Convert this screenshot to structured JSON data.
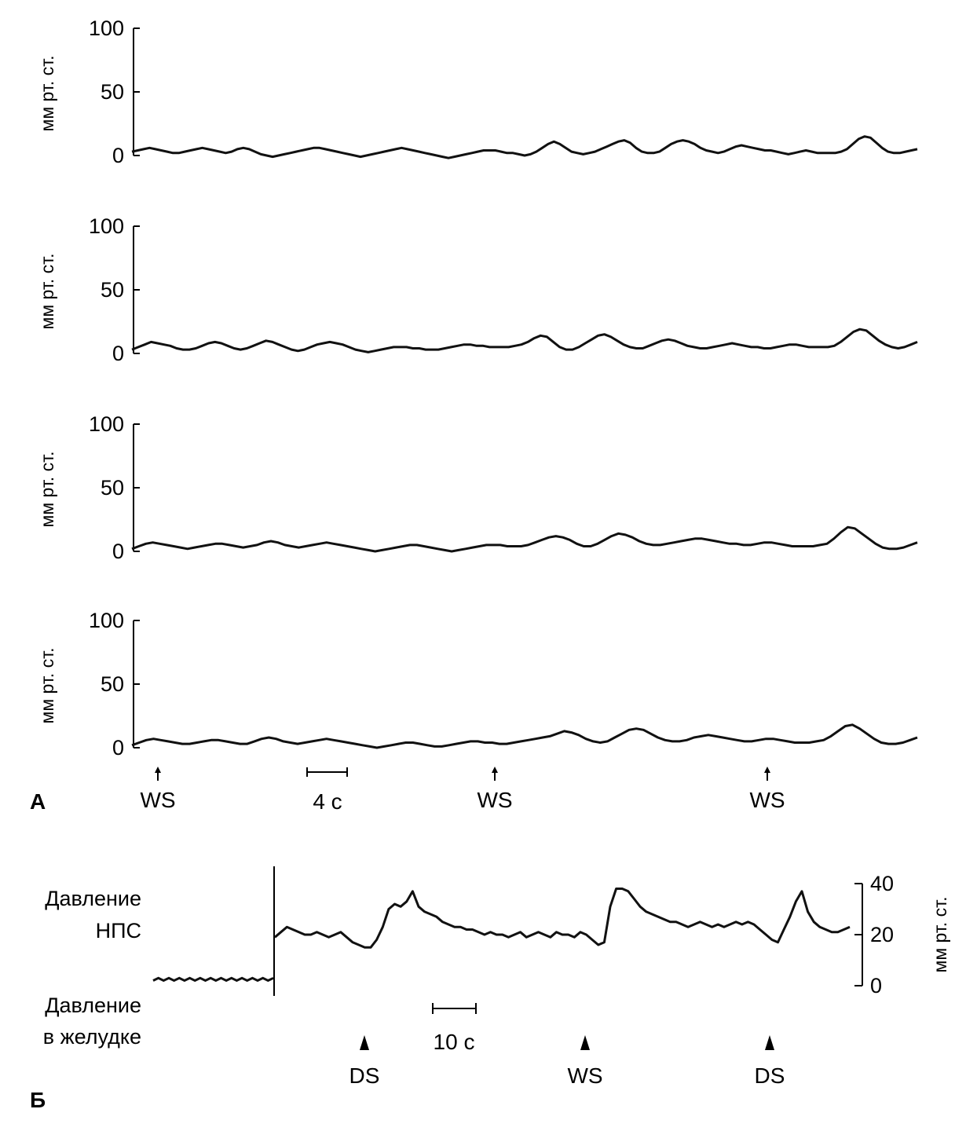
{
  "colors": {
    "trace": "#111111",
    "axis": "#000000",
    "background": "#ffffff"
  },
  "chart_data": [
    {
      "panel": "A",
      "type": "line",
      "ylabel": "мм рт. ст.",
      "ylim": [
        0,
        100
      ],
      "yticks": [
        "100",
        "50",
        "0"
      ],
      "scale_bar": "4 с",
      "events": [
        "WS",
        "WS",
        "WS"
      ],
      "series": [
        {
          "values": [
            3,
            4,
            5,
            6,
            5,
            4,
            3,
            2,
            2,
            3,
            4,
            5,
            6,
            5,
            4,
            3,
            2,
            3,
            5,
            6,
            5,
            3,
            1,
            0,
            -1,
            0,
            1,
            2,
            3,
            4,
            5,
            6,
            6,
            5,
            4,
            3,
            2,
            1,
            0,
            -1,
            0,
            1,
            2,
            3,
            4,
            5,
            6,
            5,
            4,
            3,
            2,
            1,
            0,
            -1,
            -2,
            -1,
            0,
            1,
            2,
            3,
            4,
            4,
            4,
            3,
            2,
            2,
            1,
            0,
            1,
            3,
            6,
            9,
            11,
            9,
            6,
            3,
            2,
            1,
            2,
            3,
            5,
            7,
            9,
            11,
            12,
            10,
            6,
            3,
            2,
            2,
            3,
            6,
            9,
            11,
            12,
            11,
            9,
            6,
            4,
            3,
            2,
            3,
            5,
            7,
            8,
            7,
            6,
            5,
            4,
            4,
            3,
            2,
            1,
            2,
            3,
            4,
            3,
            2,
            2,
            2,
            2,
            3,
            5,
            9,
            13,
            15,
            14,
            10,
            6,
            3,
            2,
            2,
            3,
            4,
            5
          ]
        },
        {
          "values": [
            3,
            5,
            7,
            9,
            8,
            7,
            6,
            4,
            3,
            3,
            4,
            6,
            8,
            9,
            8,
            6,
            4,
            3,
            4,
            6,
            8,
            10,
            9,
            7,
            5,
            3,
            2,
            3,
            5,
            7,
            8,
            9,
            8,
            7,
            5,
            3,
            2,
            1,
            2,
            3,
            4,
            5,
            5,
            5,
            4,
            4,
            3,
            3,
            3,
            4,
            5,
            6,
            7,
            7,
            6,
            6,
            5,
            5,
            5,
            5,
            6,
            7,
            9,
            12,
            14,
            13,
            9,
            5,
            3,
            3,
            5,
            8,
            11,
            14,
            15,
            13,
            10,
            7,
            5,
            4,
            4,
            6,
            8,
            10,
            11,
            10,
            8,
            6,
            5,
            4,
            4,
            5,
            6,
            7,
            8,
            7,
            6,
            5,
            5,
            4,
            4,
            5,
            6,
            7,
            7,
            6,
            5,
            5,
            5,
            5,
            6,
            9,
            13,
            17,
            19,
            18,
            14,
            10,
            7,
            5,
            4,
            5,
            7,
            9
          ]
        },
        {
          "values": [
            2,
            4,
            6,
            7,
            6,
            5,
            4,
            3,
            2,
            3,
            4,
            5,
            6,
            6,
            5,
            4,
            3,
            4,
            5,
            7,
            8,
            7,
            5,
            4,
            3,
            4,
            5,
            6,
            7,
            6,
            5,
            4,
            3,
            2,
            1,
            0,
            1,
            2,
            3,
            4,
            5,
            5,
            4,
            3,
            2,
            1,
            0,
            1,
            2,
            3,
            4,
            5,
            5,
            5,
            4,
            4,
            4,
            5,
            7,
            9,
            11,
            12,
            11,
            9,
            6,
            4,
            4,
            6,
            9,
            12,
            14,
            13,
            11,
            8,
            6,
            5,
            5,
            6,
            7,
            8,
            9,
            10,
            10,
            9,
            8,
            7,
            6,
            6,
            5,
            5,
            6,
            7,
            7,
            6,
            5,
            4,
            4,
            4,
            4,
            5,
            6,
            10,
            15,
            19,
            18,
            14,
            10,
            6,
            3,
            2,
            2,
            3,
            5,
            7
          ]
        },
        {
          "values": [
            2,
            4,
            6,
            7,
            6,
            5,
            4,
            3,
            3,
            4,
            5,
            6,
            6,
            5,
            4,
            3,
            3,
            5,
            7,
            8,
            7,
            5,
            4,
            3,
            4,
            5,
            6,
            7,
            6,
            5,
            4,
            3,
            2,
            1,
            0,
            1,
            2,
            3,
            4,
            4,
            3,
            2,
            1,
            1,
            2,
            3,
            4,
            5,
            5,
            4,
            4,
            3,
            3,
            4,
            5,
            6,
            7,
            8,
            9,
            11,
            13,
            12,
            10,
            7,
            5,
            4,
            5,
            8,
            11,
            14,
            15,
            14,
            11,
            8,
            6,
            5,
            5,
            6,
            8,
            9,
            10,
            9,
            8,
            7,
            6,
            5,
            5,
            6,
            7,
            7,
            6,
            5,
            4,
            4,
            4,
            5,
            6,
            9,
            13,
            17,
            18,
            15,
            11,
            7,
            4,
            3,
            3,
            4,
            6,
            8
          ]
        }
      ]
    },
    {
      "panel": "Б",
      "type": "line",
      "ylabel": "мм рт. ст.",
      "ylim": [
        0,
        40
      ],
      "yticks": [
        "40",
        "20",
        "0"
      ],
      "scale_bar": "10 с",
      "events": [
        "DS",
        "WS",
        "DS"
      ],
      "label_top": [
        "Давление",
        "НПС"
      ],
      "label_bottom": [
        "Давление",
        "в желудке"
      ],
      "series": [
        {
          "name": "Давление в желудке",
          "values": [
            2,
            3,
            2,
            3,
            2,
            3,
            2,
            3,
            2,
            3,
            2,
            3,
            2,
            3,
            2,
            3,
            2,
            3,
            2,
            3,
            2,
            3,
            2,
            3
          ]
        },
        {
          "name": "Давление НПС",
          "values": [
            19,
            21,
            23,
            22,
            21,
            20,
            20,
            21,
            20,
            19,
            20,
            21,
            19,
            17,
            16,
            15,
            15,
            18,
            23,
            30,
            32,
            31,
            33,
            37,
            31,
            29,
            28,
            27,
            25,
            24,
            23,
            23,
            22,
            22,
            21,
            20,
            21,
            20,
            20,
            19,
            20,
            21,
            19,
            20,
            21,
            20,
            19,
            21,
            20,
            20,
            19,
            21,
            20,
            18,
            16,
            17,
            31,
            38,
            38,
            37,
            34,
            31,
            29,
            28,
            27,
            26,
            25,
            25,
            24,
            23,
            24,
            25,
            24,
            23,
            24,
            23,
            24,
            25,
            24,
            25,
            24,
            22,
            20,
            18,
            17,
            22,
            27,
            33,
            37,
            29,
            25,
            23,
            22,
            21,
            21,
            22,
            23
          ]
        }
      ]
    }
  ]
}
